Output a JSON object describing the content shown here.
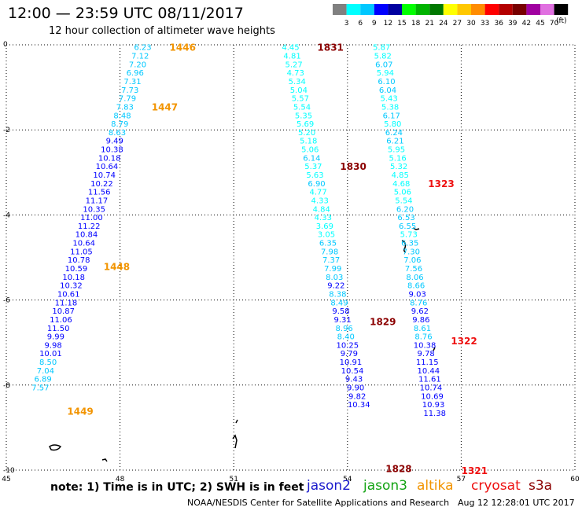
{
  "header": {
    "title": "12:00 — 23:59 UTC 08/11/2017",
    "subtitle": "12 hour collection of altimeter wave heights"
  },
  "footer": {
    "note": "note:  1) Time is in UTC;  2) SWH is in feet",
    "credit": "NOAA/NESDIS Center for Satellite Applications and Research",
    "timestamp": "Aug 12 12:28:01 UTC 2017",
    "satellites": [
      {
        "label": "jason2",
        "color": "#1a1acc"
      },
      {
        "label": "jason3",
        "color": "#13a313"
      },
      {
        "label": "altika",
        "color": "#f29400"
      },
      {
        "label": "cryosat",
        "color": "#ee1111"
      },
      {
        "label": "s3a",
        "color": "#8b0000"
      }
    ]
  },
  "chart_data": {
    "type": "scatter",
    "xlim": [
      45,
      60
    ],
    "ylim": [
      -10,
      0
    ],
    "x_ticks": [
      "45",
      "48",
      "51",
      "54",
      "57",
      "60"
    ],
    "y_ticks": [
      "0",
      "-2",
      "-4",
      "-6",
      "-8",
      "-10"
    ],
    "grid": true,
    "color_scale": {
      "unit": "(ft)",
      "levels": [
        "3",
        "6",
        "9",
        "12",
        "15",
        "18",
        "21",
        "24",
        "27",
        "30",
        "33",
        "36",
        "39",
        "42",
        "45",
        "70"
      ],
      "colors": [
        "#808080",
        "#00ffff",
        "#00c8ff",
        "#0000ff",
        "#0000a0",
        "#00ff00",
        "#00b400",
        "#007800",
        "#ffff00",
        "#ffc800",
        "#ff8c00",
        "#ff0000",
        "#b40000",
        "#780000",
        "#a000a0",
        "#e070e0",
        "#000000"
      ]
    },
    "series": [
      {
        "track_x": [
          48.6,
          45.9
        ],
        "y_start": -0.05,
        "y_step": -0.2,
        "values": [
          "6.23",
          "7.12",
          "7.20",
          "6.96",
          "7.31",
          "7.73",
          "7.79",
          "7.83",
          "8.48",
          "8.79",
          "8.63",
          "9.49",
          "10.38",
          "10.18",
          "10.64",
          "10.74",
          "10.22",
          "11.56",
          "11.17",
          "10.35",
          "11.00",
          "11.22",
          "10.84",
          "10.64",
          "11.05",
          "10.78",
          "10.59",
          "10.18",
          "10.32",
          "10.61",
          "11.18",
          "10.87",
          "11.06",
          "11.50",
          "9.99",
          "9.98",
          "10.01",
          "8.50",
          "7.04",
          "6.89",
          "7.57"
        ],
        "times": [
          {
            "label": "1446",
            "y": -0.05,
            "color": "#f29400"
          },
          {
            "label": "1447",
            "y": -1.45,
            "color": "#f29400"
          },
          {
            "label": "1448",
            "y": -5.2,
            "color": "#f29400"
          },
          {
            "label": "1449",
            "y": -8.6,
            "color": "#f29400"
          }
        ]
      },
      {
        "track_x": [
          52.5,
          54.3
        ],
        "y_start": -0.05,
        "y_step": -0.2,
        "values": [
          "4.45",
          "4.81",
          "5.27",
          "4.73",
          "5.34",
          "5.04",
          "5.57",
          "5.54",
          "5.35",
          "5.69",
          "5.20",
          "5.18",
          "5.06",
          "6.14",
          "5.37",
          "5.63",
          "6.90",
          "4.77",
          "4.33",
          "4.84",
          "4.33",
          "3.69",
          "3.05",
          "6.35",
          "7.98",
          "7.37",
          "7.99",
          "8.03",
          "9.22",
          "8.38",
          "8.49",
          "9.58",
          "9.31",
          "8.96",
          "8.40",
          "10.25",
          "9.79",
          "10.91",
          "10.54",
          "9.43",
          "9.90",
          "9.82",
          "10.34"
        ],
        "times": [
          {
            "label": "1831",
            "y": -0.05,
            "color": "#8b0000"
          },
          {
            "label": "1830",
            "y": -2.85,
            "color": "#8b0000"
          },
          {
            "label": "1829",
            "y": -6.5,
            "color": "#8b0000"
          },
          {
            "label": "1828",
            "y": -9.95,
            "color": "#8b0000"
          }
        ]
      },
      {
        "track_x": [
          54.9,
          56.3
        ],
        "y_start": -0.05,
        "y_step": -0.2,
        "values": [
          "5.87",
          "5.82",
          "6.07",
          "5.94",
          "6.10",
          "6.04",
          "5.43",
          "5.38",
          "6.17",
          "5.80",
          "6.24",
          "6.21",
          "5.95",
          "5.16",
          "5.32",
          "4.85",
          "4.68",
          "5.06",
          "5.54",
          "6.20",
          "6.53",
          "6.55",
          "5.73",
          "6.35",
          "7.30",
          "7.06",
          "7.56",
          "8.06",
          "8.66",
          "9.03",
          "8.76",
          "9.62",
          "9.86",
          "8.61",
          "8.76",
          "10.38",
          "9.78",
          "11.15",
          "10.44",
          "11.61",
          "10.74",
          "10.69",
          "10.93",
          "11.38"
        ],
        "times": [
          {
            "label": "1323",
            "y": -3.25,
            "color": "#ee1111"
          },
          {
            "label": "1322",
            "y": -6.95,
            "color": "#ee1111"
          },
          {
            "label": "1321",
            "y": -10.0,
            "color": "#ee1111"
          }
        ]
      }
    ]
  }
}
